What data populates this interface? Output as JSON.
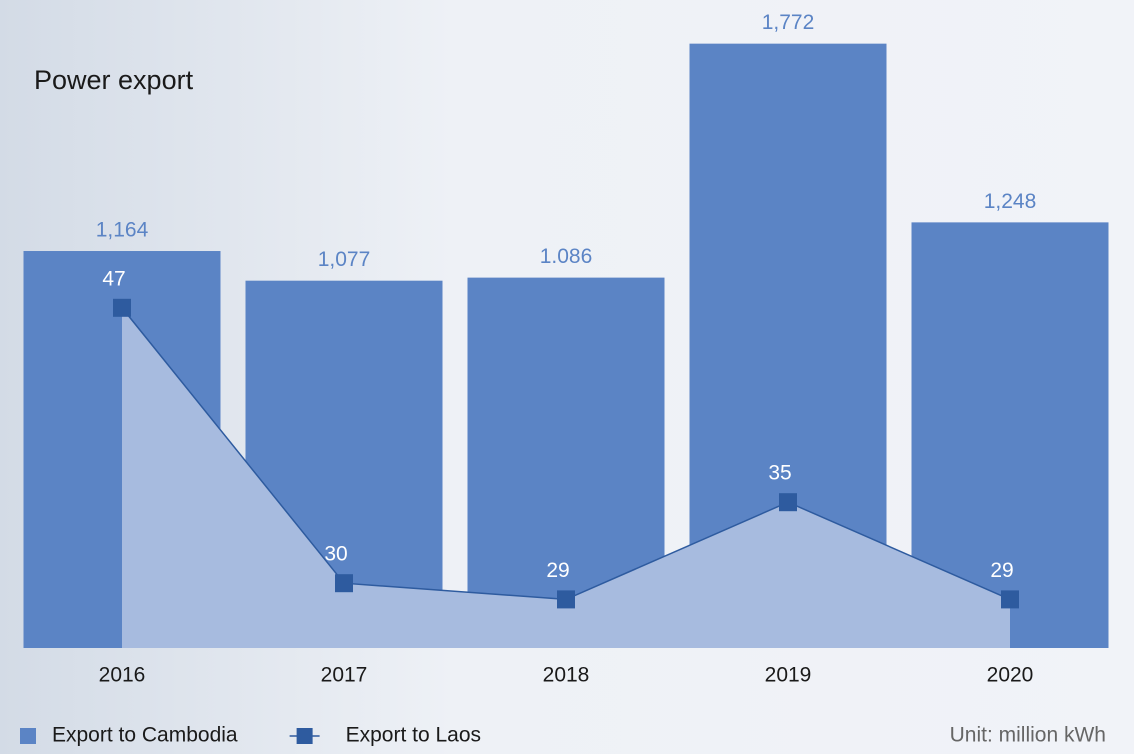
{
  "chart_data": {
    "type": "bar-line",
    "title": "Power export",
    "annotation": "Unit: million kWh",
    "categories": [
      "2016",
      "2017",
      "2018",
      "2019",
      "2020"
    ],
    "series": [
      {
        "name": "Export to Cambodia",
        "type": "bar",
        "color": "#5b84c5",
        "values": [
          1164,
          1077,
          1086,
          1772,
          1248
        ],
        "value_labels": [
          "1,164",
          "1,077",
          "1.086",
          "1,772",
          "1,248"
        ]
      },
      {
        "name": "Export to Laos",
        "type": "line",
        "axis": "y2",
        "color": "#2e5b9f",
        "area_color": "#a7bbdf",
        "values": [
          47,
          30,
          29,
          35,
          29
        ]
      }
    ],
    "ylim": [
      0,
      1900
    ],
    "y2lim": [
      26,
      66
    ],
    "legend": "bottom-left"
  }
}
